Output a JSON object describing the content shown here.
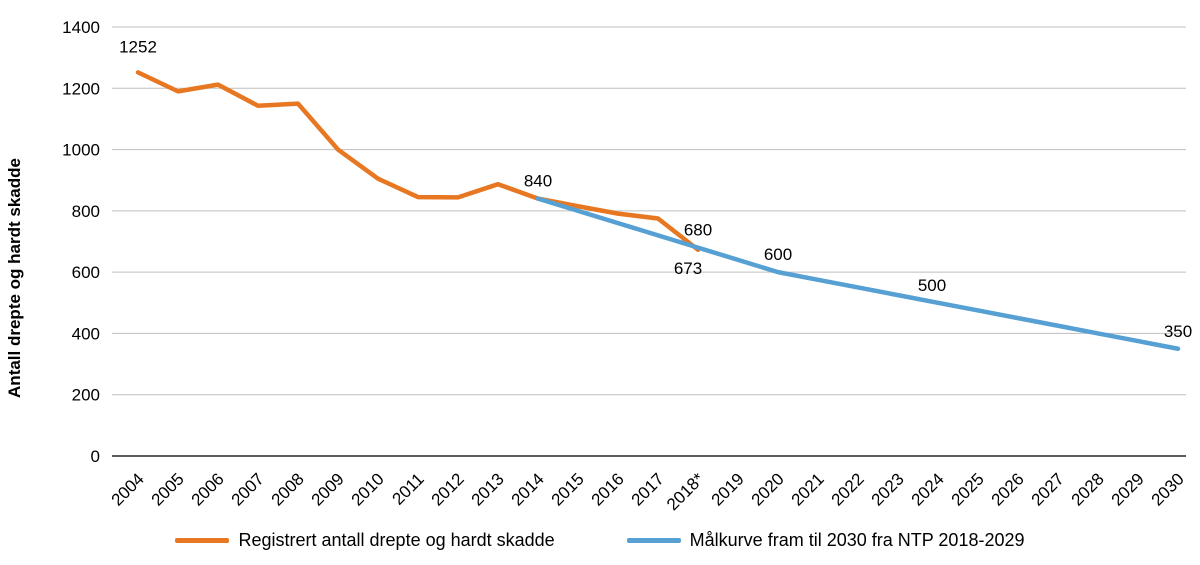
{
  "chart_data": {
    "type": "line",
    "title": "",
    "ylabel": "Antall drepte og hardt skadde",
    "xlabel": "",
    "ylim": [
      0,
      1400
    ],
    "yticks": [
      0,
      200,
      400,
      600,
      800,
      1000,
      1200,
      1400
    ],
    "grid": "horizontal",
    "legend_position": "bottom",
    "categories": [
      "2004",
      "2005",
      "2006",
      "2007",
      "2008",
      "2009",
      "2010",
      "2011",
      "2012",
      "2013",
      "2014",
      "2015",
      "2016",
      "2017",
      "2018*",
      "2019",
      "2020",
      "2021",
      "2022",
      "2023",
      "2024",
      "2025",
      "2026",
      "2027",
      "2028",
      "2029",
      "2030"
    ],
    "series": [
      {
        "name": "Registrert antall drepte og hardt skadde",
        "color": "#E87722",
        "values": [
          1252,
          1190,
          1212,
          1143,
          1150,
          1000,
          905,
          845,
          844,
          887,
          840,
          815,
          791,
          775,
          673,
          null,
          null,
          null,
          null,
          null,
          null,
          null,
          null,
          null,
          null,
          null,
          null
        ]
      },
      {
        "name": "Målkurve fram til 2030 fra NTP 2018-2029",
        "color": "#56A0D3",
        "values": [
          null,
          null,
          null,
          null,
          null,
          null,
          null,
          null,
          null,
          null,
          840,
          800,
          760,
          720,
          680,
          640,
          600,
          575,
          550,
          525,
          500,
          475,
          450,
          425,
          400,
          375,
          350
        ]
      }
    ],
    "annotations": [
      {
        "text": "1252",
        "series": 0,
        "index": 0,
        "position": "above",
        "dy": -8
      },
      {
        "text": "840",
        "series": 1,
        "index": 10,
        "position": "above"
      },
      {
        "text": "680",
        "series": 1,
        "index": 14,
        "position": "above"
      },
      {
        "text": "673",
        "series": 0,
        "index": 14,
        "position": "below",
        "dx": -10
      },
      {
        "text": "600",
        "series": 1,
        "index": 16,
        "position": "above"
      },
      {
        "text": "500",
        "series": 1,
        "index": 20,
        "position": "above",
        "dx": -6
      },
      {
        "text": "350",
        "series": 1,
        "index": 26,
        "position": "above"
      }
    ],
    "legend": [
      {
        "label": "Registrert antall drepte og hardt skadde",
        "color": "#E87722"
      },
      {
        "label": "Målkurve fram til 2030 fra NTP 2018-2029",
        "color": "#56A0D3"
      }
    ]
  }
}
